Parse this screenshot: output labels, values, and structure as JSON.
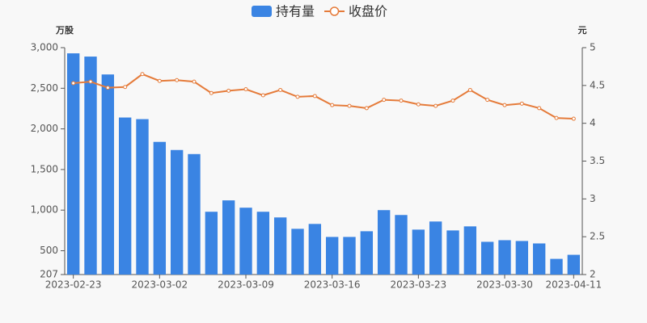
{
  "chart_data": {
    "type": "bar_line",
    "y_label": "万股",
    "y2_label": "元",
    "categories": [
      "2023-02-23",
      null,
      null,
      null,
      null,
      "2023-03-02",
      null,
      null,
      null,
      null,
      "2023-03-09",
      null,
      null,
      null,
      null,
      "2023-03-16",
      null,
      null,
      null,
      null,
      "2023-03-23",
      null,
      null,
      null,
      null,
      "2023-03-30",
      null,
      null,
      null,
      "2023-04-11"
    ],
    "series": [
      {
        "name": "持有量",
        "type": "bar",
        "color": "#3a84e3",
        "values": [
          2930,
          2890,
          2670,
          2140,
          2120,
          1840,
          1740,
          1690,
          980,
          1120,
          1030,
          980,
          910,
          770,
          830,
          670,
          670,
          740,
          1000,
          940,
          760,
          860,
          750,
          800,
          610,
          630,
          620,
          590,
          400,
          450
        ]
      },
      {
        "name": "收盘价",
        "type": "line",
        "axis": "y2",
        "color": "#e57b3a",
        "values": [
          4.53,
          4.55,
          4.47,
          4.48,
          4.65,
          4.56,
          4.57,
          4.55,
          4.4,
          4.43,
          4.45,
          4.37,
          4.44,
          4.35,
          4.36,
          4.24,
          4.23,
          4.2,
          4.31,
          4.3,
          4.25,
          4.23,
          4.3,
          4.44,
          4.31,
          4.24,
          4.26,
          4.2,
          4.07,
          4.06
        ]
      }
    ],
    "ylim": [
      207,
      3000
    ],
    "yticks": [
      207,
      500,
      {
        "value": 1000,
        "label": "1,000"
      },
      {
        "value": 1500,
        "label": "1,500"
      },
      {
        "value": 2000,
        "label": "2,000"
      },
      {
        "value": 2500,
        "label": "2,500"
      },
      {
        "value": 3000,
        "label": "3,000"
      }
    ],
    "y2lim": [
      2,
      5
    ],
    "y2ticks": [
      2,
      2.5,
      3,
      3.5,
      4,
      4.5,
      5
    ],
    "legend": "top"
  }
}
